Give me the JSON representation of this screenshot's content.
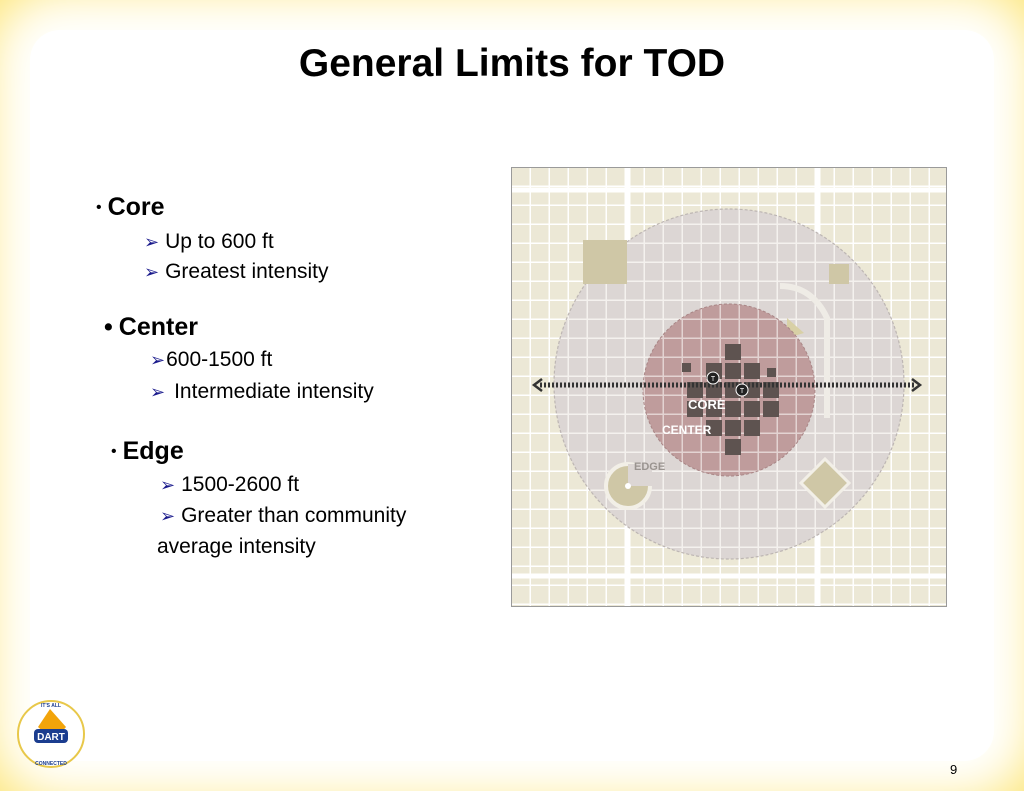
{
  "slide": {
    "title": "General Limits for TOD",
    "page_number": "9"
  },
  "sections": [
    {
      "heading": "Core",
      "items": [
        "Up to 600 ft",
        "Greatest intensity"
      ]
    },
    {
      "heading": "Center",
      "items": [
        "600-1500 ft",
        "Intermediate intensity"
      ]
    },
    {
      "heading": "Edge",
      "items": [
        "1500-2600 ft",
        "Greater than community",
        "average intensity"
      ]
    }
  ],
  "diagram": {
    "labels": {
      "core": "CORE",
      "center": "CENTER",
      "edge": "EDGE",
      "transit_marker": "T"
    },
    "colors": {
      "edge_zone": "#dcd6d4",
      "center_zone": "#bf9c9c",
      "core_zone": "#5e5350",
      "grid_line": "#ffffff",
      "block": "#ece8d6"
    }
  },
  "logo": {
    "top_text": "IT'S ALL",
    "name": "DART",
    "bottom_text": "CONNECTED"
  }
}
